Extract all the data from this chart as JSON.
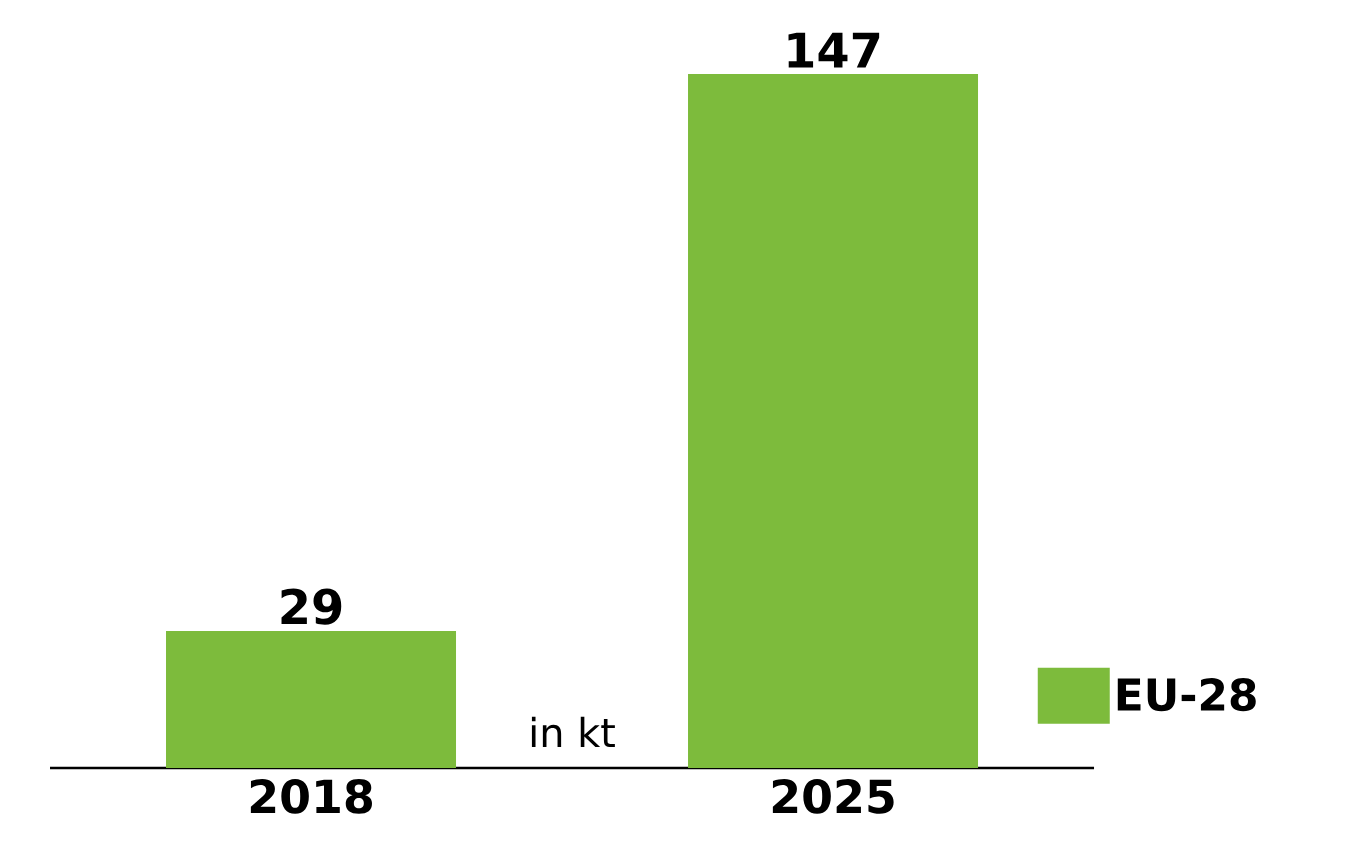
{
  "chart_data": {
    "type": "bar",
    "categories": [
      "2018",
      "2025"
    ],
    "series": [
      {
        "name": "EU-28",
        "color": "#7dbb3c",
        "values": [
          29,
          147
        ]
      }
    ],
    "data_labels": true,
    "legend": "right",
    "annotations": [
      "in kt"
    ]
  }
}
